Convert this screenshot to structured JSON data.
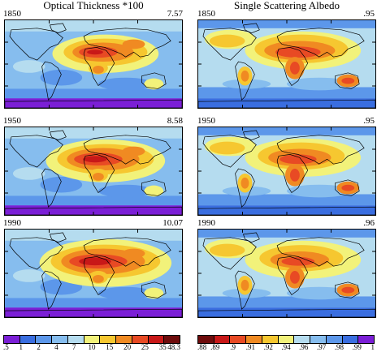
{
  "titles": {
    "left": "Optical Thickness *100",
    "right": "Single Scattering Albedo"
  },
  "panels": [
    {
      "year": "1850",
      "left_value": "7.57",
      "right_value": ".95"
    },
    {
      "year": "1950",
      "left_value": "8.58",
      "right_value": ".95"
    },
    {
      "year": "1990",
      "left_value": "10.07",
      "right_value": ".96"
    }
  ],
  "colorbar_left": {
    "labels": [
      ".5",
      "1",
      "2",
      "4",
      "7",
      "10",
      "15",
      "20",
      "25",
      "35",
      "48.3"
    ],
    "colors": [
      "#7b1fd6",
      "#3a6ee0",
      "#5c97ea",
      "#86bdee",
      "#b5dcef",
      "#f2f27a",
      "#f6c730",
      "#f08a22",
      "#e84a24",
      "#c81818",
      "#6e0c0c"
    ]
  },
  "colorbar_right": {
    "labels": [
      ".88",
      ".89",
      ".9",
      ".91",
      ".92",
      ".94",
      ".96",
      ".97",
      ".98",
      ".99",
      "1"
    ],
    "colors": [
      "#6e0c0c",
      "#c81818",
      "#e84a24",
      "#f08a22",
      "#f6c730",
      "#f2f27a",
      "#b5dcef",
      "#86bdee",
      "#5c97ea",
      "#3a6ee0",
      "#7b1fd6"
    ]
  }
}
